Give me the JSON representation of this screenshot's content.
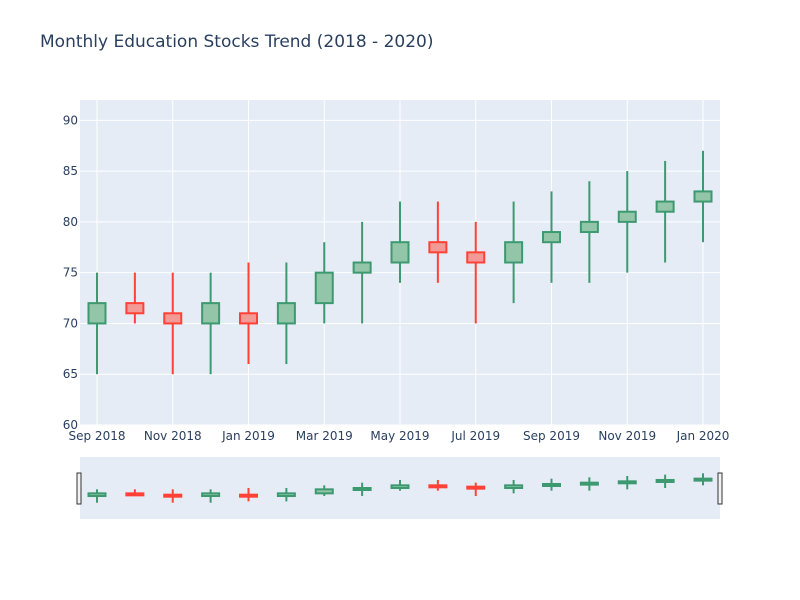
{
  "chart_data": {
    "type": "candlestick",
    "title": "Monthly Education Stocks Trend (2018 - 2020)",
    "xlabel": "",
    "ylabel": "",
    "ylim": [
      60,
      92
    ],
    "y_ticks": [
      60,
      65,
      70,
      75,
      80,
      85,
      90
    ],
    "x_tick_labels": [
      "Sep 2018",
      "Nov 2018",
      "Jan 2019",
      "Mar 2019",
      "May 2019",
      "Jul 2019",
      "Sep 2019",
      "Nov 2019",
      "Jan 2020"
    ],
    "grid": true,
    "rangeslider": true,
    "colors": {
      "increasing": "#3d9970",
      "increasing_fill": "#93c5a9",
      "decreasing": "#ff4136",
      "decreasing_fill": "#f49a96",
      "plot_bg": "#e5ecf6",
      "grid": "#ffffff",
      "text": "#2a3f5f"
    },
    "candles": [
      {
        "date": "2018-09",
        "open": 70,
        "high": 75,
        "low": 65,
        "close": 72
      },
      {
        "date": "2018-10",
        "open": 72,
        "high": 75,
        "low": 70,
        "close": 71
      },
      {
        "date": "2018-11",
        "open": 71,
        "high": 75,
        "low": 65,
        "close": 70
      },
      {
        "date": "2018-12",
        "open": 70,
        "high": 75,
        "low": 65,
        "close": 72
      },
      {
        "date": "2019-01",
        "open": 71,
        "high": 76,
        "low": 66,
        "close": 70
      },
      {
        "date": "2019-02",
        "open": 70,
        "high": 76,
        "low": 66,
        "close": 72
      },
      {
        "date": "2019-03",
        "open": 72,
        "high": 78,
        "low": 70,
        "close": 75
      },
      {
        "date": "2019-04",
        "open": 75,
        "high": 80,
        "low": 70,
        "close": 76
      },
      {
        "date": "2019-05",
        "open": 76,
        "high": 82,
        "low": 74,
        "close": 78
      },
      {
        "date": "2019-06",
        "open": 78,
        "high": 82,
        "low": 74,
        "close": 77
      },
      {
        "date": "2019-07",
        "open": 77,
        "high": 80,
        "low": 70,
        "close": 76
      },
      {
        "date": "2019-08",
        "open": 76,
        "high": 82,
        "low": 72,
        "close": 78
      },
      {
        "date": "2019-09",
        "open": 78,
        "high": 83,
        "low": 74,
        "close": 79
      },
      {
        "date": "2019-10",
        "open": 79,
        "high": 84,
        "low": 74,
        "close": 80
      },
      {
        "date": "2019-11",
        "open": 80,
        "high": 85,
        "low": 75,
        "close": 81
      },
      {
        "date": "2019-12",
        "open": 81,
        "high": 86,
        "low": 76,
        "close": 82
      },
      {
        "date": "2020-01",
        "open": 82,
        "high": 87,
        "low": 78,
        "close": 83
      }
    ]
  }
}
